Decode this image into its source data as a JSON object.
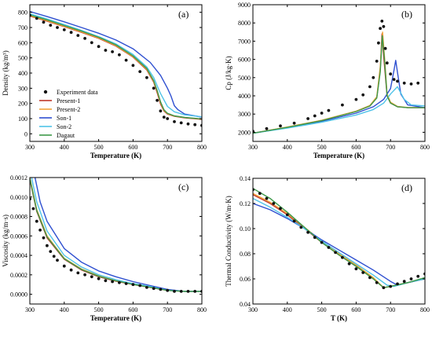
{
  "colors": {
    "experiment": "#111111",
    "present1": "#c0392b",
    "present2": "#f2a33a",
    "son1": "#2e4fd0",
    "son2": "#4fc3e8",
    "dagaut": "#3d9a4a"
  },
  "chart_data": [
    {
      "panel_label": "(a)",
      "type": "line",
      "xlabel": "Temperature (K)",
      "ylabel": "Density (kg/m³)",
      "xlim": [
        300,
        800
      ],
      "ylim": [
        -50,
        850
      ],
      "xticks": [
        300,
        400,
        500,
        600,
        700,
        800
      ],
      "yticks": [
        0,
        100,
        200,
        300,
        400,
        500,
        600,
        700,
        800
      ],
      "legend": {
        "placement": "center-left",
        "entries": [
          "Experiment data",
          "Present-1",
          "Present-2",
          "Son-1",
          "Son-2",
          "Dagaut"
        ]
      },
      "series": [
        {
          "name": "Experiment data",
          "kind": "scatter",
          "color_key": "experiment",
          "x": [
            300,
            320,
            340,
            360,
            380,
            400,
            420,
            440,
            460,
            480,
            500,
            520,
            540,
            560,
            580,
            600,
            620,
            640,
            660,
            670,
            680,
            690,
            700,
            720,
            740,
            760,
            780,
            800
          ],
          "y": [
            780,
            760,
            735,
            715,
            700,
            685,
            668,
            648,
            628,
            600,
            575,
            550,
            540,
            520,
            485,
            450,
            410,
            370,
            300,
            220,
            150,
            110,
            100,
            80,
            72,
            65,
            60,
            55
          ]
        },
        {
          "name": "Present-1",
          "kind": "line",
          "color_key": "present1",
          "x": [
            300,
            350,
            400,
            450,
            500,
            550,
            600,
            640,
            660,
            670,
            680,
            690,
            700,
            720,
            750,
            800
          ],
          "y": [
            775,
            742,
            705,
            668,
            628,
            578,
            505,
            420,
            340,
            270,
            195,
            150,
            130,
            115,
            105,
            95
          ]
        },
        {
          "name": "Present-2",
          "kind": "line",
          "color_key": "present2",
          "x": [
            300,
            350,
            400,
            450,
            500,
            550,
            600,
            640,
            660,
            670,
            680,
            690,
            700,
            720,
            750,
            800
          ],
          "y": [
            778,
            745,
            708,
            671,
            631,
            581,
            508,
            425,
            345,
            280,
            205,
            155,
            133,
            117,
            107,
            97
          ]
        },
        {
          "name": "Son-1",
          "kind": "line",
          "color_key": "son1",
          "x": [
            300,
            350,
            400,
            450,
            500,
            550,
            600,
            650,
            680,
            700,
            710,
            720,
            730,
            750,
            800
          ],
          "y": [
            805,
            772,
            737,
            700,
            662,
            618,
            560,
            470,
            385,
            300,
            250,
            185,
            160,
            130,
            110
          ]
        },
        {
          "name": "Son-2",
          "kind": "line",
          "color_key": "son2",
          "x": [
            300,
            350,
            400,
            450,
            500,
            550,
            600,
            640,
            660,
            680,
            700,
            720,
            750,
            800
          ],
          "y": [
            790,
            756,
            719,
            681,
            640,
            592,
            522,
            440,
            370,
            265,
            180,
            145,
            125,
            112
          ]
        },
        {
          "name": "Dagaut",
          "kind": "line",
          "color_key": "dagaut",
          "x": [
            300,
            350,
            400,
            450,
            500,
            550,
            600,
            640,
            660,
            670,
            680,
            690,
            700,
            720,
            750,
            800
          ],
          "y": [
            783,
            750,
            713,
            676,
            636,
            586,
            513,
            430,
            350,
            285,
            210,
            158,
            135,
            118,
            108,
            98
          ]
        }
      ]
    },
    {
      "panel_label": "(b)",
      "type": "line",
      "xlabel": "Temperature (K)",
      "ylabel": "Cp (J/kg·K)",
      "xlim": [
        300,
        800
      ],
      "ylim": [
        1500,
        9000
      ],
      "xticks": [
        300,
        400,
        500,
        600,
        700,
        800
      ],
      "yticks": [
        2000,
        3000,
        4000,
        5000,
        6000,
        7000,
        8000,
        9000
      ],
      "series": [
        {
          "name": "Experiment data",
          "kind": "scatter",
          "color_key": "experiment",
          "x": [
            300,
            340,
            380,
            420,
            460,
            480,
            500,
            520,
            560,
            600,
            620,
            640,
            650,
            660,
            665,
            670,
            675,
            680,
            685,
            690,
            700,
            710,
            720,
            740,
            760,
            780
          ],
          "y": [
            2050,
            2200,
            2350,
            2500,
            2750,
            2900,
            3050,
            3200,
            3500,
            3800,
            4050,
            4500,
            5000,
            5900,
            6900,
            7700,
            8100,
            7800,
            6600,
            5800,
            5200,
            4900,
            4800,
            4700,
            4650,
            4700
          ]
        },
        {
          "name": "Present-1",
          "kind": "line",
          "color_key": "present1",
          "x": [
            300,
            400,
            500,
            600,
            640,
            660,
            670,
            675,
            680,
            690,
            700,
            720,
            750,
            800
          ],
          "y": [
            1950,
            2280,
            2650,
            3150,
            3450,
            3900,
            5400,
            7400,
            6200,
            4000,
            3600,
            3400,
            3350,
            3350
          ]
        },
        {
          "name": "Present-2",
          "kind": "line",
          "color_key": "present2",
          "x": [
            300,
            400,
            500,
            600,
            640,
            660,
            670,
            677,
            683,
            690,
            700,
            720,
            750,
            800
          ],
          "y": [
            1950,
            2290,
            2660,
            3160,
            3470,
            3950,
            5600,
            7500,
            6000,
            4100,
            3650,
            3420,
            3360,
            3350
          ]
        },
        {
          "name": "Son-1",
          "kind": "line",
          "color_key": "son1",
          "x": [
            300,
            400,
            500,
            600,
            650,
            680,
            700,
            710,
            715,
            720,
            730,
            750,
            800
          ],
          "y": [
            1950,
            2250,
            2600,
            3050,
            3400,
            3800,
            4400,
            5400,
            5950,
            5300,
            4100,
            3500,
            3350
          ]
        },
        {
          "name": "Son-2",
          "kind": "line",
          "color_key": "son2",
          "x": [
            300,
            400,
            500,
            600,
            650,
            680,
            700,
            720,
            740,
            760,
            800
          ],
          "y": [
            1950,
            2230,
            2550,
            2950,
            3250,
            3600,
            4100,
            4500,
            3800,
            3500,
            3450
          ]
        },
        {
          "name": "Dagaut",
          "kind": "line",
          "color_key": "dagaut",
          "x": [
            300,
            400,
            500,
            600,
            640,
            660,
            670,
            676,
            682,
            690,
            700,
            720,
            750,
            800
          ],
          "y": [
            1950,
            2270,
            2640,
            3140,
            3440,
            3880,
            5300,
            7300,
            6100,
            4000,
            3600,
            3400,
            3350,
            3350
          ]
        }
      ]
    },
    {
      "panel_label": "(c)",
      "type": "line",
      "xlabel": "Temperature (K)",
      "ylabel": "Viscosity (kg/m·s)",
      "xlim": [
        300,
        800
      ],
      "ylim": [
        -0.0001,
        0.0012
      ],
      "xticks": [
        300,
        400,
        500,
        600,
        700,
        800
      ],
      "yticks": [
        0.0,
        0.0002,
        0.0004,
        0.0006,
        0.0008,
        0.001,
        0.0012
      ],
      "ytick_labels": [
        "0.0000",
        "0.0002",
        "0.0004",
        "0.0006",
        "0.0008",
        "0.0010",
        "0.0012"
      ],
      "series": [
        {
          "name": "Experiment data",
          "kind": "scatter",
          "color_key": "experiment",
          "x": [
            300,
            310,
            320,
            330,
            340,
            350,
            360,
            370,
            380,
            400,
            420,
            440,
            460,
            480,
            500,
            520,
            540,
            560,
            580,
            600,
            620,
            640,
            660,
            680,
            700,
            720,
            740,
            760,
            780,
            800
          ],
          "y": [
            0.00098,
            0.00088,
            0.00075,
            0.00066,
            0.00058,
            0.0005,
            0.00044,
            0.00039,
            0.00035,
            0.00029,
            0.00025,
            0.00022,
            0.0002,
            0.00018,
            0.00016,
            0.00014,
            0.00013,
            0.00012,
            0.00011,
            0.0001,
            9e-05,
            7e-05,
            6e-05,
            5e-05,
            4e-05,
            3e-05,
            3e-05,
            3e-05,
            3e-05,
            3e-05
          ]
        },
        {
          "name": "Present-1",
          "kind": "line",
          "color_key": "present1",
          "x": [
            300,
            320,
            350,
            400,
            450,
            500,
            550,
            600,
            650,
            700,
            750,
            800
          ],
          "y": [
            0.00118,
            0.00085,
            0.00058,
            0.00036,
            0.00025,
            0.00018,
            0.000135,
            0.0001,
            7e-05,
            4e-05,
            3e-05,
            3e-05
          ]
        },
        {
          "name": "Present-2",
          "kind": "line",
          "color_key": "present2",
          "x": [
            300,
            320,
            350,
            400,
            450,
            500,
            550,
            600,
            650,
            700,
            750,
            800
          ],
          "y": [
            0.0012,
            0.00087,
            0.0006,
            0.00037,
            0.00026,
            0.00019,
            0.00014,
            0.000105,
            7.5e-05,
            4.2e-05,
            3e-05,
            3e-05
          ]
        },
        {
          "name": "Son-1",
          "kind": "line",
          "color_key": "son1",
          "x": [
            315,
            330,
            350,
            400,
            450,
            500,
            550,
            600,
            650,
            700,
            750,
            800
          ],
          "y": [
            0.0012,
            0.00095,
            0.00075,
            0.00047,
            0.00033,
            0.00024,
            0.00018,
            0.00013,
            9e-05,
            5e-05,
            3e-05,
            3e-05
          ]
        },
        {
          "name": "Son-2",
          "kind": "line",
          "color_key": "son2",
          "x": [
            305,
            320,
            350,
            400,
            450,
            500,
            550,
            600,
            650,
            700,
            750,
            800
          ],
          "y": [
            0.0012,
            0.00095,
            0.00065,
            0.0004,
            0.00028,
            0.0002,
            0.00015,
            0.00011,
            8e-05,
            4e-05,
            3e-05,
            3e-05
          ]
        },
        {
          "name": "Dagaut",
          "kind": "line",
          "color_key": "dagaut",
          "x": [
            300,
            320,
            350,
            400,
            450,
            500,
            550,
            600,
            650,
            700,
            750,
            800
          ],
          "y": [
            0.00119,
            0.00086,
            0.00059,
            0.000365,
            0.000255,
            0.000185,
            0.000138,
            0.000102,
            7.2e-05,
            4e-05,
            3e-05,
            3e-05
          ]
        }
      ]
    },
    {
      "panel_label": "(d)",
      "type": "line",
      "xlabel": "T (K)",
      "ylabel": "Thermal Conductivity (W/m·K)",
      "xlim": [
        300,
        800
      ],
      "ylim": [
        0.04,
        0.14
      ],
      "xticks": [
        300,
        400,
        500,
        600,
        700,
        800
      ],
      "yticks": [
        0.04,
        0.06,
        0.08,
        0.1,
        0.12,
        0.14
      ],
      "ytick_labels": [
        "0.04",
        "0.06",
        "0.08",
        "0.10",
        "0.12",
        "0.14"
      ],
      "series": [
        {
          "name": "Experiment data",
          "kind": "scatter",
          "color_key": "experiment",
          "x": [
            300,
            320,
            340,
            360,
            380,
            400,
            420,
            440,
            460,
            480,
            500,
            520,
            540,
            560,
            580,
            600,
            620,
            640,
            660,
            680,
            700,
            720,
            740,
            760,
            780,
            800
          ],
          "y": [
            0.131,
            0.128,
            0.124,
            0.12,
            0.116,
            0.111,
            0.106,
            0.101,
            0.097,
            0.093,
            0.089,
            0.085,
            0.081,
            0.077,
            0.072,
            0.068,
            0.065,
            0.061,
            0.057,
            0.053,
            0.054,
            0.056,
            0.058,
            0.06,
            0.062,
            0.064
          ]
        },
        {
          "name": "Present-1",
          "kind": "line",
          "color_key": "present1",
          "x": [
            300,
            350,
            400,
            450,
            500,
            550,
            600,
            650,
            680,
            700,
            750,
            800
          ],
          "y": [
            0.127,
            0.12,
            0.111,
            0.1,
            0.089,
            0.079,
            0.07,
            0.06,
            0.053,
            0.054,
            0.057,
            0.06
          ]
        },
        {
          "name": "Present-2",
          "kind": "line",
          "color_key": "present2",
          "x": [
            300,
            350,
            400,
            450,
            500,
            550,
            600,
            650,
            680,
            700,
            750,
            800
          ],
          "y": [
            0.128,
            0.121,
            0.112,
            0.101,
            0.09,
            0.08,
            0.071,
            0.061,
            0.053,
            0.054,
            0.057,
            0.06
          ]
        },
        {
          "name": "Son-1",
          "kind": "line",
          "color_key": "son1",
          "x": [
            300,
            350,
            400,
            450,
            500,
            550,
            600,
            650,
            700,
            720,
            750,
            800
          ],
          "y": [
            0.12,
            0.115,
            0.108,
            0.1,
            0.091,
            0.083,
            0.075,
            0.067,
            0.058,
            0.055,
            0.057,
            0.06
          ]
        },
        {
          "name": "Son-2",
          "kind": "line",
          "color_key": "son2",
          "x": [
            300,
            350,
            400,
            450,
            500,
            550,
            600,
            650,
            690,
            710,
            750,
            800
          ],
          "y": [
            0.124,
            0.117,
            0.109,
            0.1,
            0.09,
            0.081,
            0.072,
            0.063,
            0.055,
            0.054,
            0.057,
            0.06
          ]
        },
        {
          "name": "Dagaut",
          "kind": "line",
          "color_key": "dagaut",
          "x": [
            300,
            350,
            400,
            450,
            500,
            550,
            600,
            650,
            680,
            700,
            750,
            800
          ],
          "y": [
            0.132,
            0.124,
            0.113,
            0.101,
            0.089,
            0.079,
            0.07,
            0.06,
            0.053,
            0.054,
            0.057,
            0.061
          ]
        }
      ]
    }
  ]
}
